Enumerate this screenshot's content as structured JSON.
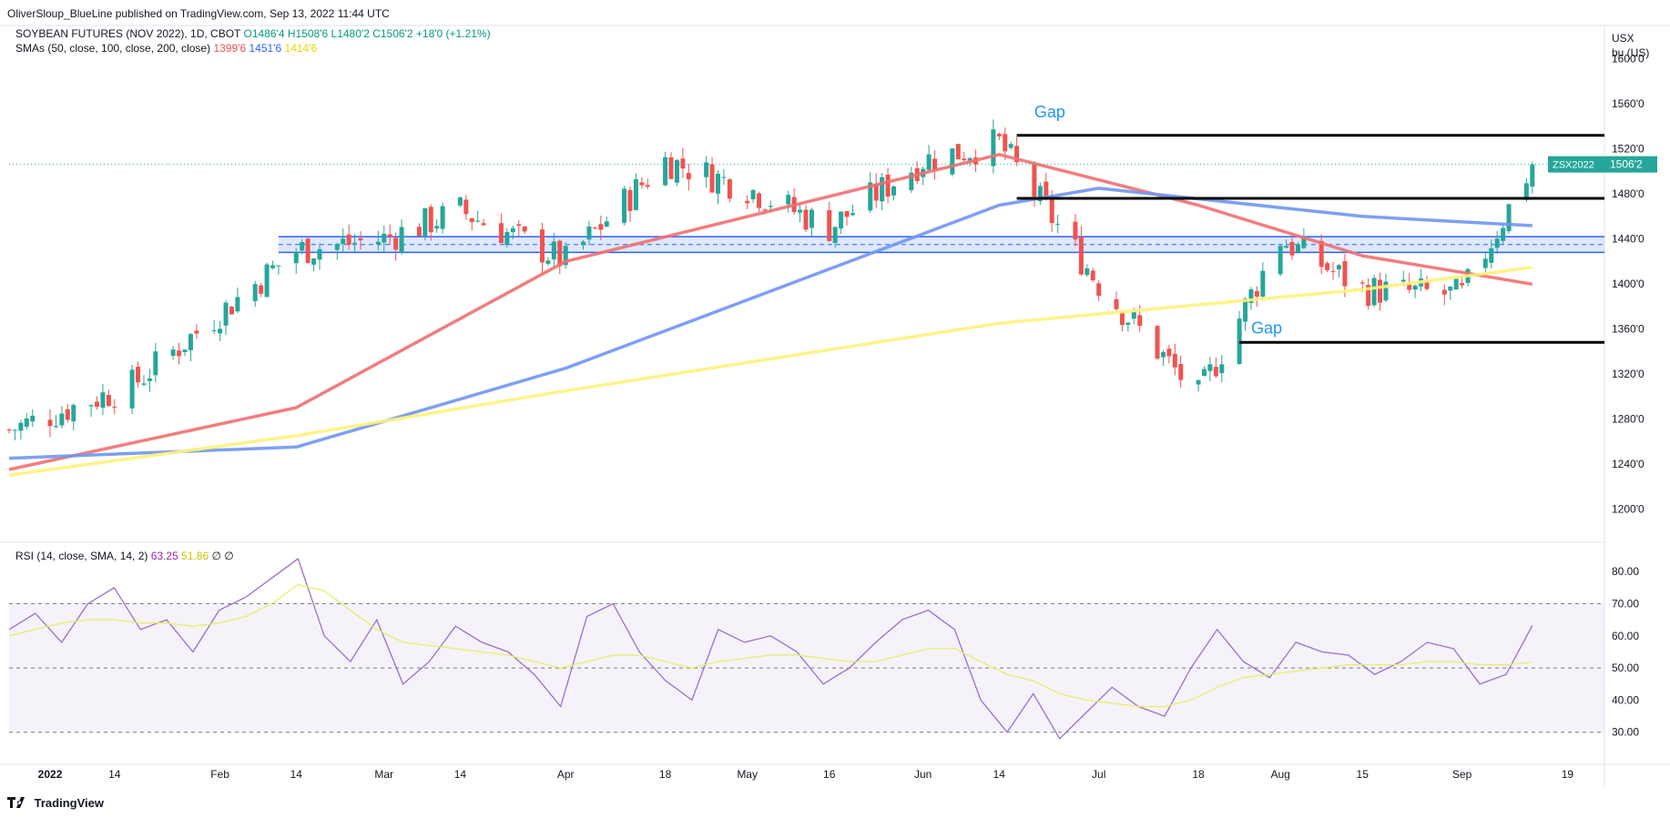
{
  "header": {
    "published": "OliverSloup_BlueLine published on TradingView.com, Sep 13, 2022 11:44 UTC"
  },
  "main_legend": {
    "symbol": "SOYBEAN FUTURES (NOV 2022), 1D, CBOT",
    "open": "O1486'4",
    "high": "H1508'6",
    "low": "L1480'2",
    "close": "C1506'2",
    "change": "+18'0 (+1.21%)"
  },
  "sma_legend": {
    "label": "SMAs (50, close, 100, close, 200, close)",
    "sma50": "1399'6",
    "sma100": "1451'6",
    "sma200": "1414'6"
  },
  "rsi_legend": {
    "label": "RSI (14, close, SMA, 14, 2)",
    "rsi": "63.25",
    "ma": "51.86",
    "extra1": "∅",
    "extra2": "∅"
  },
  "price_axis": {
    "currency": "USX",
    "unit": "bu (US)",
    "ticks": [
      "1600'0",
      "1560'0",
      "1520'0",
      "1480'0",
      "1440'0",
      "1400'0",
      "1360'0",
      "1320'0",
      "1280'0",
      "1240'0",
      "1200'0"
    ],
    "tag_symbol": "ZSX2022",
    "tag_price": "1506'2"
  },
  "rsi_axis": {
    "ticks": [
      "80.00",
      "70.00",
      "60.00",
      "50.00",
      "40.00",
      "30.00"
    ]
  },
  "time_axis": {
    "ticks": [
      "2022",
      "14",
      "Feb",
      "14",
      "Mar",
      "14",
      "Apr",
      "18",
      "May",
      "16",
      "Jun",
      "14",
      "Jul",
      "18",
      "Aug",
      "15",
      "Sep",
      "19"
    ]
  },
  "annotations": {
    "gap_top": "Gap",
    "gap_bottom": "Gap"
  },
  "footer": {
    "brand": "TradingView"
  },
  "colors": {
    "up": "#26a69a",
    "down": "#ef5350",
    "sma50": "#f07070",
    "sma100": "#6f96f0",
    "sma200": "#fff27a",
    "rsi": "#9c6fc9",
    "rsi_ma": "#e7ee6a",
    "zone": "#2962ff",
    "tag": "#26a69a"
  },
  "chart_data": [
    {
      "type": "candlestick",
      "title": "SOYBEAN FUTURES (NOV 2022), 1D, CBOT",
      "ylabel": "USX bu (US)",
      "ylim": [
        1180,
        1620
      ],
      "x": [
        "2021-12-27",
        "2022-01-17",
        "2022-02-14",
        "2022-03-01",
        "2022-03-14",
        "2022-04-01",
        "2022-04-18",
        "2022-05-02",
        "2022-05-16",
        "2022-06-01",
        "2022-06-14",
        "2022-07-01",
        "2022-07-18",
        "2022-08-01",
        "2022-08-15",
        "2022-09-01",
        "2022-09-13"
      ],
      "close_points": [
        1270,
        1310,
        1430,
        1440,
        1465,
        1420,
        1510,
        1485,
        1450,
        1510,
        1525,
        1400,
        1300,
        1440,
        1395,
        1390,
        1506
      ],
      "last": {
        "open": 1486.5,
        "high": 1508.75,
        "low": 1480.25,
        "close": 1506.25
      },
      "sma": [
        {
          "name": "SMA 50",
          "x": [
            "2021-12-27",
            "2022-02-14",
            "2022-04-01",
            "2022-06-14",
            "2022-07-18",
            "2022-08-15",
            "2022-09-13"
          ],
          "values": [
            1235,
            1290,
            1420,
            1515,
            1470,
            1425,
            1399.75
          ]
        },
        {
          "name": "SMA 100",
          "x": [
            "2021-12-27",
            "2022-02-14",
            "2022-04-01",
            "2022-06-14",
            "2022-07-01",
            "2022-08-15",
            "2022-09-13"
          ],
          "values": [
            1245,
            1255,
            1325,
            1470,
            1485,
            1460,
            1451.75
          ]
        },
        {
          "name": "SMA 200",
          "x": [
            "2021-12-27",
            "2022-02-14",
            "2022-04-01",
            "2022-06-14",
            "2022-08-15",
            "2022-09-13"
          ],
          "values": [
            1230,
            1265,
            1305,
            1365,
            1395,
            1414.75
          ]
        }
      ],
      "horizontal_lines": [
        1532,
        1476,
        1348
      ],
      "zone": [
        1428,
        1442,
        1435
      ]
    },
    {
      "type": "line",
      "title": "RSI (14, close, SMA, 14, 2)",
      "ylim": [
        20,
        88
      ],
      "levels": [
        70,
        50,
        30
      ],
      "series": [
        {
          "name": "RSI",
          "values": [
            62,
            67,
            58,
            70,
            75,
            62,
            65,
            55,
            68,
            72,
            78,
            84,
            60,
            52,
            65,
            45,
            52,
            63,
            58,
            55,
            48,
            38,
            66,
            70,
            55,
            46,
            40,
            62,
            58,
            60,
            55,
            45,
            50,
            58,
            65,
            68,
            62,
            40,
            30,
            42,
            28,
            36,
            44,
            38,
            35,
            50,
            62,
            52,
            47,
            58,
            55,
            54,
            48,
            52,
            58,
            56,
            45,
            48,
            63.25
          ]
        },
        {
          "name": "RSI MA",
          "values": [
            60,
            62,
            64,
            65,
            65,
            64,
            64,
            63,
            64,
            66,
            70,
            76,
            74,
            68,
            62,
            58,
            57,
            56,
            55,
            54,
            52,
            50,
            52,
            54,
            54,
            52,
            50,
            52,
            53,
            54,
            54,
            53,
            52,
            52,
            54,
            56,
            56,
            52,
            48,
            46,
            42,
            40,
            39,
            38,
            38,
            40,
            44,
            47,
            48,
            49,
            50,
            51,
            51,
            51,
            52,
            52,
            51,
            51,
            51.86
          ]
        }
      ]
    }
  ]
}
